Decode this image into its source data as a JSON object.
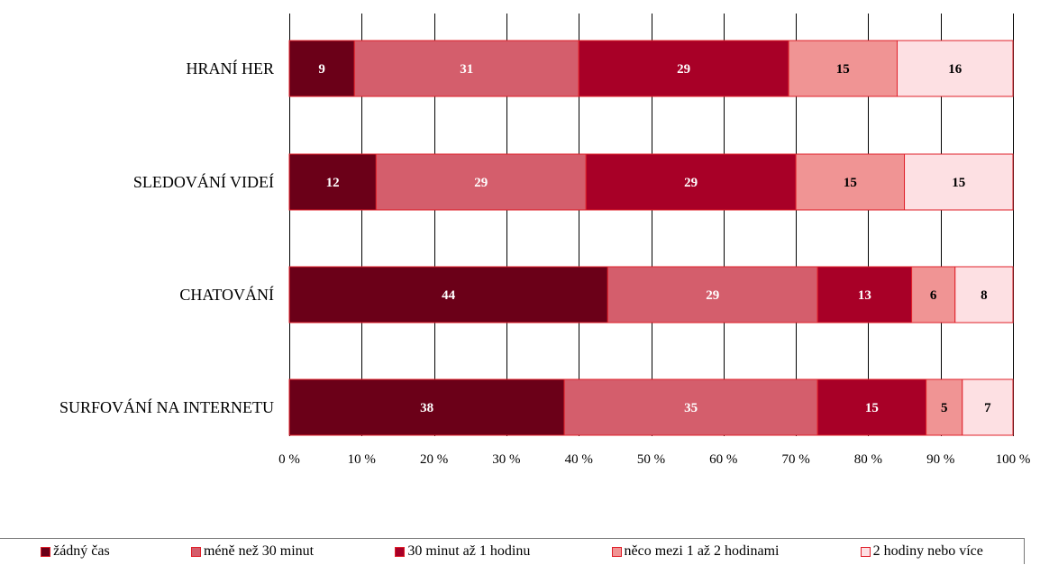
{
  "chart_data": {
    "type": "bar",
    "orientation": "horizontal",
    "stacked": true,
    "percent": true,
    "categories": [
      "HRANÍ HER",
      "SLEDOVÁNÍ VIDEÍ",
      "CHATOVÁNÍ",
      "SURFOVÁNÍ NA INTERNETU"
    ],
    "series": [
      {
        "name": "žádný čas",
        "values": [
          9,
          12,
          44,
          38
        ],
        "color": "#6b0018",
        "label_color": "#ffffff"
      },
      {
        "name": "méně než 30 minut",
        "values": [
          31,
          29,
          29,
          35
        ],
        "color": "#d45e6c",
        "label_color": "#ffffff"
      },
      {
        "name": "30 minut až 1 hodinu",
        "values": [
          29,
          29,
          13,
          15
        ],
        "color": "#a80027",
        "label_color": "#ffffff"
      },
      {
        "name": "něco mezi 1 až 2 hodinami",
        "values": [
          15,
          15,
          6,
          5
        ],
        "color": "#f09494",
        "label_color": "#000000"
      },
      {
        "name": "2 hodiny nebo více",
        "values": [
          16,
          15,
          8,
          7
        ],
        "color": "#fde0e3",
        "label_color": "#000000"
      }
    ],
    "xlim": [
      0,
      100
    ],
    "x_ticks": [
      "0 %",
      "10 %",
      "20 %",
      "30 %",
      "40 %",
      "50 %",
      "60 %",
      "70 %",
      "80 %",
      "90 %",
      "100 %"
    ],
    "grid": true,
    "legend_position": "bottom",
    "title": "",
    "xlabel": "",
    "ylabel": ""
  }
}
